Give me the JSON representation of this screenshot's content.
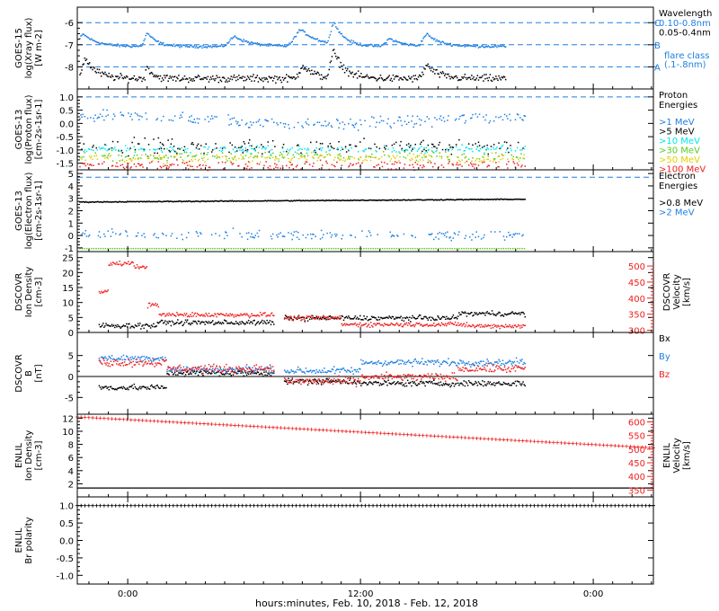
{
  "figure": {
    "xlabel": "hours:minutes, Feb. 10, 2018 - Feb. 12, 2018",
    "x_ticks": [
      {
        "t": 0.0,
        "label": "0:00"
      },
      {
        "t": 12.0,
        "label": "12:00"
      },
      {
        "t": 24.0,
        "label": "0:00"
      }
    ],
    "x_range_hours": [
      -2.6,
      27.1
    ],
    "colors": {
      "black": "#000000",
      "blue": "#1e7fe0",
      "cyan": "#00e5ee",
      "green": "#55cc22",
      "yellow": "#e0d000",
      "orange": "#ff8c00",
      "red": "#ee2020"
    }
  },
  "chart_data": [
    {
      "id": "xray",
      "type": "scatter",
      "ylabel": [
        "GOES-15",
        "log(Xray flux)",
        "[W m-2]"
      ],
      "ylim": [
        -9.0,
        -5.3
      ],
      "yticks": [
        -6,
        -7,
        -8
      ],
      "reference_lines": [
        {
          "y": -6,
          "class_label": "C"
        },
        {
          "y": -7,
          "class_label": "B"
        },
        {
          "y": -8,
          "class_label": "A"
        }
      ],
      "legend": {
        "title": "Wavelength",
        "entries": [
          {
            "label": "0.10-0.8nm",
            "color": "blue"
          },
          {
            "label": "0.05-0.4nm",
            "color": "black"
          }
        ],
        "note": [
          "flare class",
          "(.1-.8nm)"
        ]
      },
      "series": [
        {
          "name": "0.10-0.8nm",
          "color": "blue",
          "baseline": -7.05,
          "noise": 0.05,
          "start": -2.5,
          "end": 19.5,
          "bumps": [
            [
              -2.3,
              -6.5,
              0.5
            ],
            [
              1.0,
              -6.45,
              0.35
            ],
            [
              5.5,
              -6.6,
              0.6
            ],
            [
              8.9,
              -6.3,
              0.7
            ],
            [
              10.6,
              -5.95,
              0.4
            ],
            [
              13.5,
              -6.7,
              0.5
            ],
            [
              15.4,
              -6.5,
              0.5
            ]
          ]
        },
        {
          "name": "0.05-0.4nm",
          "color": "black",
          "baseline": -8.5,
          "noise": 0.14,
          "start": -2.5,
          "end": 19.5,
          "bumps": [
            [
              -2.2,
              -7.6,
              0.4
            ],
            [
              1.0,
              -7.95,
              0.2
            ],
            [
              9.0,
              -7.9,
              0.4
            ],
            [
              10.6,
              -7.3,
              0.4
            ],
            [
              15.4,
              -7.9,
              0.4
            ]
          ]
        }
      ]
    },
    {
      "id": "proton",
      "type": "scatter",
      "ylabel": [
        "GOES-13",
        "log(Proton flux)",
        "[cm-2s-1sr-1]"
      ],
      "ylim": [
        -1.75,
        1.3
      ],
      "yticks": [
        1.0,
        0.5,
        0.0,
        -0.5,
        -1.0,
        -1.5
      ],
      "reference_lines": [
        {
          "y": 1.0
        }
      ],
      "legend": {
        "title": [
          "Proton",
          "Energies"
        ],
        "entries": [
          {
            "label": ">1 MeV",
            "color": "blue"
          },
          {
            "label": ">5 MeV",
            "color": "black"
          },
          {
            "label": ">10 MeV",
            "color": "cyan"
          },
          {
            "label": ">30 MeV",
            "color": "green"
          },
          {
            "label": ">50 MeV",
            "color": "yellow"
          },
          {
            "label": ">100 MeV",
            "color": "red"
          }
        ]
      },
      "series": [
        {
          "name": ">1 MeV",
          "color": "blue",
          "baseline": 0.3,
          "noise": 0.18,
          "start": -2.5,
          "end": 20.5,
          "dip": [
            10.0,
            -0.3
          ]
        },
        {
          "name": ">5 MeV",
          "color": "black",
          "baseline": -0.85,
          "noise": 0.25,
          "start": -2.5,
          "end": 20.5
        },
        {
          "name": ">10 MeV",
          "color": "cyan",
          "baseline": -0.95,
          "noise": 0.12,
          "start": -2.5,
          "end": 20.5
        },
        {
          "name": ">30 MeV",
          "color": "green",
          "baseline": -1.2,
          "noise": 0.15,
          "start": -2.5,
          "end": 20.5
        },
        {
          "name": ">50 MeV",
          "color": "yellow",
          "baseline": -1.3,
          "noise": 0.15,
          "start": -2.5,
          "end": 20.5
        },
        {
          "name": ">100 MeV",
          "color": "red",
          "baseline": -1.55,
          "noise": 0.15,
          "start": -2.5,
          "end": 20.5
        }
      ]
    },
    {
      "id": "electron",
      "type": "scatter",
      "ylabel": [
        "GOES-13",
        "log(Electron flux)",
        "[cm-2s-1sr-1]"
      ],
      "ylim": [
        -1.3,
        5.3
      ],
      "yticks": [
        5,
        4,
        3,
        2,
        1,
        0,
        -1
      ],
      "reference_lines": [
        {
          "y": 4.7
        }
      ],
      "legend": {
        "title": [
          "Electron",
          "Energies"
        ],
        "entries": [
          {
            "label": ">0.8 MeV",
            "color": "black"
          },
          {
            "label": ">2 MeV",
            "color": "blue"
          }
        ]
      },
      "series": [
        {
          "name": ">0.8 MeV",
          "color": "black",
          "baseline": 2.75,
          "noise": 0.03,
          "start": -2.5,
          "end": 20.5,
          "trend": 0.01
        },
        {
          "name": ">2 MeV",
          "color": "blue",
          "baseline": 0.1,
          "noise": 0.35,
          "start": -2.5,
          "end": 20.5
        },
        {
          "name": "floor",
          "color": "green",
          "baseline": -1.0,
          "noise": 0.0,
          "start": -2.5,
          "end": 20.5
        }
      ]
    },
    {
      "id": "dscovr_plasma",
      "type": "scatter",
      "ylabel": [
        "DSCOVR",
        "Ion Density",
        "[cm-3]"
      ],
      "ylim": [
        0,
        27
      ],
      "yticks": [
        0,
        5,
        10,
        15,
        20,
        25
      ],
      "y2label": [
        "DSCOVR",
        "Velocity",
        "[km/s]"
      ],
      "y2lim": [
        293,
        545
      ],
      "y2ticks": [
        300,
        350,
        400,
        450,
        500
      ],
      "series": [
        {
          "name": "Ion Density",
          "color": "black",
          "axis": "left",
          "segments": [
            [
              -1.5,
              0.5,
              2.5
            ],
            [
              0.5,
              1.5,
              2.5
            ],
            [
              1.5,
              7.5,
              3.5
            ],
            [
              8.0,
              17.0,
              5.0
            ],
            [
              17.0,
              20.5,
              6.5
            ]
          ],
          "noise": 0.7,
          "gaps": [
            [
              7.5,
              8.0
            ]
          ]
        },
        {
          "name": "Velocity",
          "color": "red",
          "axis": "right",
          "segments": [
            [
              -1.5,
              -1.0,
              420
            ],
            [
              -1.0,
              0.3,
              510
            ],
            [
              0.3,
              1.0,
              500
            ],
            [
              1.0,
              1.6,
              380
            ],
            [
              1.6,
              7.5,
              350
            ],
            [
              8.0,
              11.0,
              340
            ],
            [
              11.0,
              17.5,
              320
            ],
            [
              17.5,
              20.5,
              315
            ]
          ],
          "noise": 6,
          "gaps": [
            [
              7.5,
              8.0
            ]
          ]
        }
      ]
    },
    {
      "id": "dscovr_mag",
      "type": "scatter",
      "ylabel": [
        "DSCOVR",
        "B",
        "[nT]"
      ],
      "ylim": [
        -9,
        10.5
      ],
      "yticks": [
        5,
        0,
        -5
      ],
      "zero_line": true,
      "legend": {
        "entries": [
          {
            "label": "Bx",
            "color": "black"
          },
          {
            "label": "By",
            "color": "blue"
          },
          {
            "label": "Bz",
            "color": "red"
          }
        ]
      },
      "series": [
        {
          "name": "Bx",
          "color": "black",
          "segments": [
            [
              -1.5,
              2.0,
              -2.5
            ],
            [
              2.0,
              7.5,
              1.0
            ],
            [
              8.0,
              12.0,
              -1.0
            ],
            [
              12.0,
              17.0,
              -1.5
            ],
            [
              17.0,
              20.5,
              -1.5
            ]
          ],
          "noise": 0.6,
          "gaps": [
            [
              7.5,
              8.0
            ]
          ]
        },
        {
          "name": "By",
          "color": "blue",
          "segments": [
            [
              -1.5,
              2.0,
              4.5
            ],
            [
              2.0,
              7.5,
              1.8
            ],
            [
              8.0,
              12.0,
              1.5
            ],
            [
              12.0,
              17.0,
              3.5
            ],
            [
              17.0,
              20.5,
              3.5
            ]
          ],
          "noise": 0.7,
          "gaps": [
            [
              7.5,
              8.0
            ]
          ]
        },
        {
          "name": "Bz",
          "color": "red",
          "segments": [
            [
              -1.5,
              2.0,
              3.5
            ],
            [
              2.0,
              7.5,
              2.0
            ],
            [
              8.0,
              12.0,
              -1.0
            ],
            [
              12.0,
              17.0,
              0.0
            ],
            [
              17.0,
              20.5,
              2.0
            ]
          ],
          "noise": 0.8,
          "gaps": [
            [
              7.5,
              8.0
            ]
          ]
        }
      ]
    },
    {
      "id": "enlil_plasma",
      "type": "line",
      "ylabel": [
        "ENLIL",
        "Ion Density",
        "[cm-3]"
      ],
      "ylim": [
        0,
        12.6
      ],
      "yticks": [
        12,
        10,
        8,
        6,
        4,
        2
      ],
      "y2label": [
        "ENLIL",
        "Velocity",
        "[km/s]"
      ],
      "y2lim": [
        325,
        628
      ],
      "y2ticks": [
        350,
        400,
        450,
        500,
        550,
        600
      ],
      "series": [
        {
          "name": "Ion Density",
          "color": "black",
          "axis": "left",
          "x": [
            -2.6,
            27.1
          ],
          "values": [
            1.35,
            1.35
          ]
        },
        {
          "name": "Velocity",
          "color": "red",
          "axis": "right",
          "x": [
            -2.6,
            27.1
          ],
          "values": [
            618,
            505
          ],
          "marker": "plus"
        }
      ]
    },
    {
      "id": "enlil_polarity",
      "type": "line",
      "ylabel": [
        "ENLIL",
        "Br polarity"
      ],
      "ylim": [
        -1.25,
        1.25
      ],
      "yticks": [
        1.0,
        0.5,
        0.0,
        -0.5,
        -1.0
      ],
      "series": [
        {
          "name": "Br polarity",
          "color": "black",
          "x": [
            -2.6,
            27.1
          ],
          "values": [
            1.0,
            1.0
          ],
          "marker": "plus"
        }
      ]
    }
  ]
}
